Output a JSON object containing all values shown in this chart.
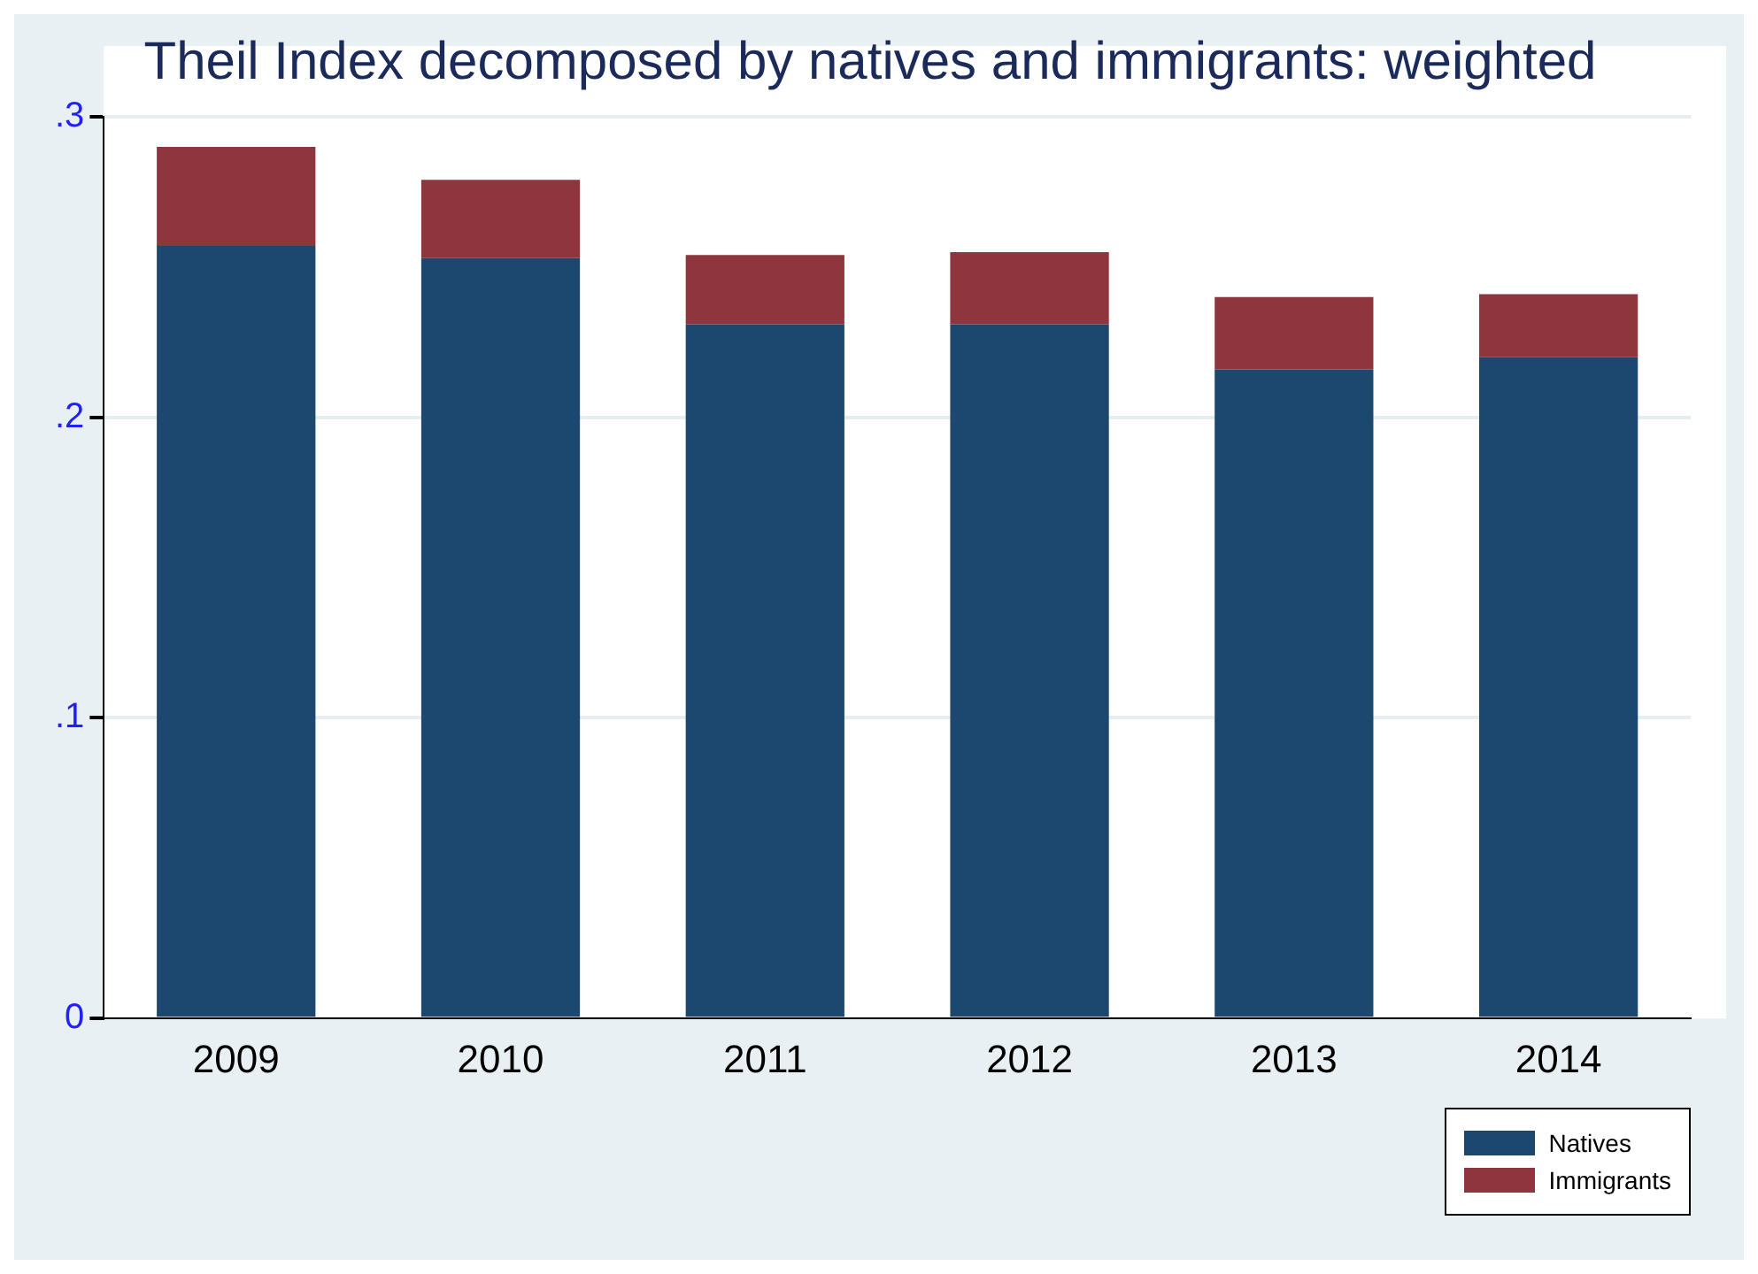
{
  "chart_data": {
    "type": "bar",
    "title": "Theil Index decomposed by natives and immigrants: weighted",
    "categories": [
      "2009",
      "2010",
      "2011",
      "2012",
      "2013",
      "2014"
    ],
    "series": [
      {
        "name": "Natives",
        "color": "#1c476e",
        "values": [
          0.257,
          0.253,
          0.231,
          0.231,
          0.216,
          0.22
        ]
      },
      {
        "name": "Immigrants",
        "color": "#8f353e",
        "values": [
          0.033,
          0.026,
          0.023,
          0.024,
          0.024,
          0.021
        ]
      }
    ],
    "stacked": true,
    "ylim": [
      0,
      0.3
    ],
    "yticks": [
      0,
      {
        "value": 0.1,
        "label": ".1"
      },
      {
        "value": 0.2,
        "label": ".2"
      },
      {
        "value": 0.3,
        "label": ".3"
      }
    ],
    "grid": "y",
    "legend": "bottom right"
  }
}
